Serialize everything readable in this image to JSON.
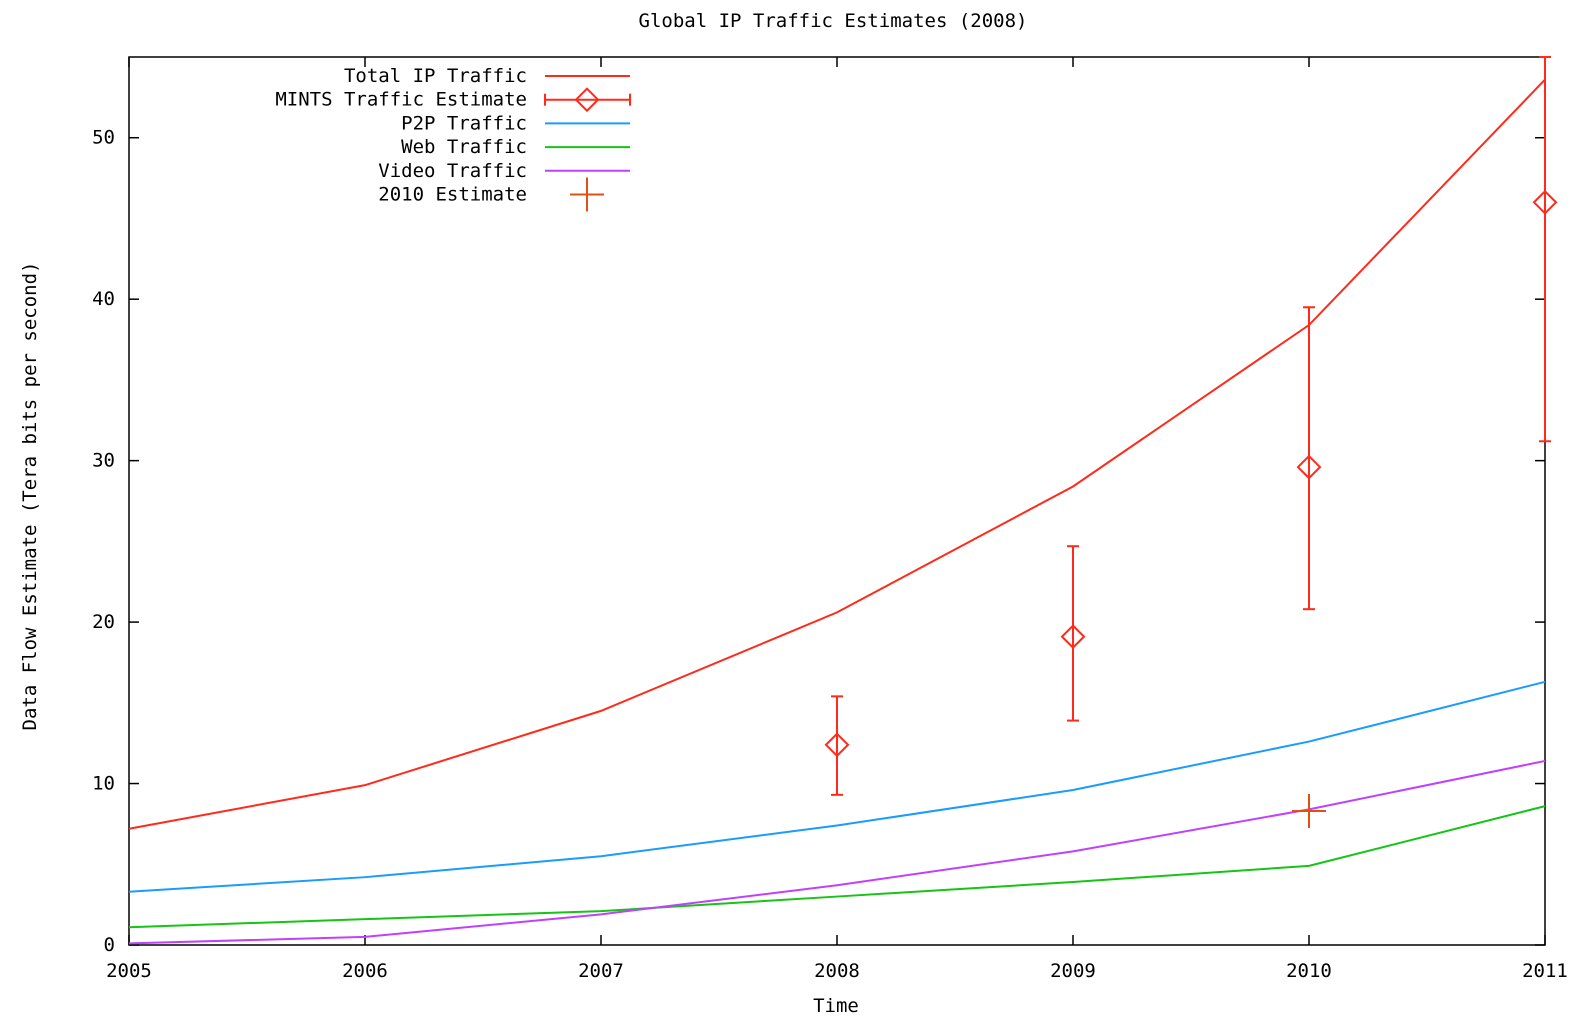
{
  "chart_data": {
    "type": "line",
    "title": "Global IP Traffic Estimates (2008)",
    "xlabel": "Time",
    "ylabel": "Data Flow Estimate (Tera bits per second)",
    "xlim": [
      2005,
      2011
    ],
    "ylim": [
      0,
      55
    ],
    "x_ticks": [
      "2005",
      "2006",
      "2007",
      "2008",
      "2009",
      "2010",
      "2011"
    ],
    "y_ticks": [
      "0",
      "10",
      "20",
      "30",
      "40",
      "50"
    ],
    "grid": false,
    "legend_position": "top-left",
    "series": [
      {
        "name": "Total IP Traffic",
        "kind": "line",
        "color": "#ff2a1a",
        "x": [
          2005,
          2006,
          2007,
          2008,
          2009,
          2010,
          2011
        ],
        "y": [
          7.2,
          9.9,
          14.5,
          20.6,
          28.4,
          38.4,
          53.6
        ]
      },
      {
        "name": "MINTS Traffic Estimate",
        "kind": "errorbar",
        "color": "#ff2a1a",
        "x": [
          2008,
          2009,
          2010,
          2011
        ],
        "y": [
          12.4,
          19.1,
          29.6,
          46.0
        ],
        "y_low": [
          9.3,
          13.9,
          20.8,
          31.2
        ],
        "y_high": [
          15.4,
          24.7,
          39.5,
          55.0
        ]
      },
      {
        "name": "P2P Traffic",
        "kind": "line",
        "color": "#1a9cff",
        "x": [
          2005,
          2006,
          2007,
          2008,
          2009,
          2010,
          2011
        ],
        "y": [
          3.3,
          4.2,
          5.5,
          7.4,
          9.6,
          12.6,
          16.3
        ]
      },
      {
        "name": "Web Traffic",
        "kind": "line",
        "color": "#16c416",
        "x": [
          2005,
          2006,
          2007,
          2008,
          2009,
          2010,
          2011
        ],
        "y": [
          1.1,
          1.6,
          2.1,
          3.0,
          3.9,
          4.9,
          8.6
        ]
      },
      {
        "name": "Video Traffic",
        "kind": "line",
        "color": "#c040ff",
        "x": [
          2005,
          2006,
          2007,
          2008,
          2009,
          2010,
          2011
        ],
        "y": [
          0.1,
          0.5,
          1.9,
          3.7,
          5.8,
          8.4,
          11.4
        ]
      },
      {
        "name": "2010 Estimate",
        "kind": "point",
        "color": "#e05010",
        "x": [
          2010
        ],
        "y": [
          8.3
        ]
      }
    ]
  }
}
